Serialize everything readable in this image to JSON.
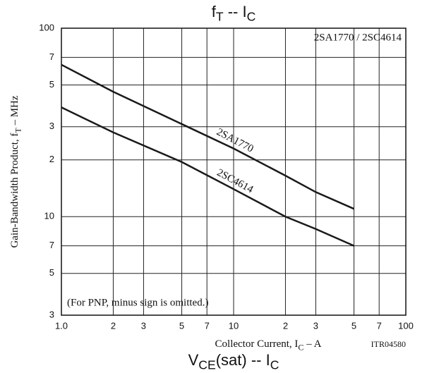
{
  "chart_data": {
    "type": "line",
    "title": [
      "f",
      "T",
      "  --  I",
      "C"
    ],
    "xlabel": [
      "Collector Current,  I",
      "C",
      "  –  A"
    ],
    "ylabel": [
      "Gain-Bandwidth Product,  f",
      "T",
      "  –  MHz"
    ],
    "annotations": [
      "2SA1770 / 2SC4614",
      "(For PNP, minus sign is omitted.)",
      "ITR04580"
    ],
    "next_title": [
      "V",
      "CE",
      "(sat) -- I",
      "C"
    ],
    "x": [
      1,
      2,
      5,
      10,
      20,
      30,
      50
    ],
    "series": [
      {
        "name": "2SA1770",
        "color": "#1a1a1a",
        "values": [
          64,
          46,
          31,
          23,
          16.5,
          13.5,
          11
        ]
      },
      {
        "name": "2SC4614",
        "color": "#1a1a1a",
        "values": [
          38,
          28,
          19.5,
          14,
          10,
          8.6,
          7
        ]
      }
    ],
    "xscale": "log",
    "yscale": "log",
    "xlim": [
      1,
      100
    ],
    "ylim": [
      3,
      100
    ],
    "xticks": [
      {
        "value": 1,
        "label": "1.0"
      },
      2,
      3,
      5,
      7,
      10,
      {
        "value": 20,
        "label": "2"
      },
      {
        "value": 30,
        "label": "3"
      },
      {
        "value": 50,
        "label": "5"
      },
      {
        "value": 70,
        "label": "7"
      },
      100
    ],
    "yticks": [
      3,
      5,
      7,
      10,
      {
        "value": 20,
        "label": "2"
      },
      {
        "value": 30,
        "label": "3"
      },
      {
        "value": 50,
        "label": "5"
      },
      {
        "value": 70,
        "label": "7"
      },
      100
    ],
    "grid": true
  }
}
